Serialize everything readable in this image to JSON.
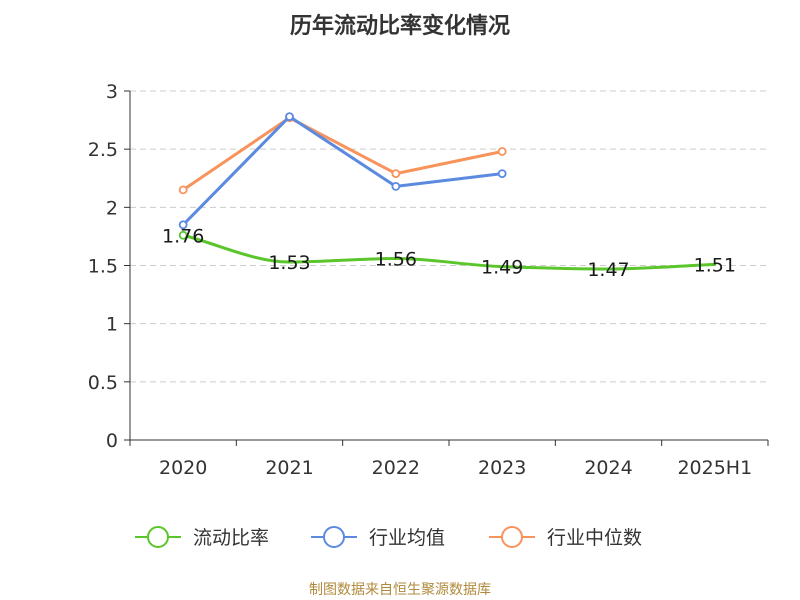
{
  "chart_data": {
    "type": "line",
    "title": "历年流动比率变化情况",
    "categories": [
      "2020",
      "2021",
      "2022",
      "2023",
      "2024",
      "2025H1"
    ],
    "ylim": [
      0,
      3
    ],
    "yticks": [
      "0",
      "0.5",
      "1",
      "1.5",
      "2",
      "2.5",
      "3"
    ],
    "grid": true,
    "legend_position": "bottom",
    "series": [
      {
        "name": "流动比率",
        "color": "#5ac62c",
        "values": [
          1.76,
          1.53,
          1.56,
          1.49,
          1.47,
          1.51
        ],
        "labels": [
          "1.76",
          "1.53",
          "1.56",
          "1.49",
          "1.47",
          "1.51"
        ],
        "smooth": true,
        "markers": "first-only"
      },
      {
        "name": "行业均值",
        "color": "#5b8ae0",
        "values": [
          1.85,
          2.78,
          2.18,
          2.29,
          null,
          null
        ]
      },
      {
        "name": "行业中位数",
        "color": "#f7935b",
        "values": [
          2.15,
          2.77,
          2.29,
          2.48,
          null,
          null
        ]
      }
    ]
  },
  "source": "制图数据来自恒生聚源数据库"
}
